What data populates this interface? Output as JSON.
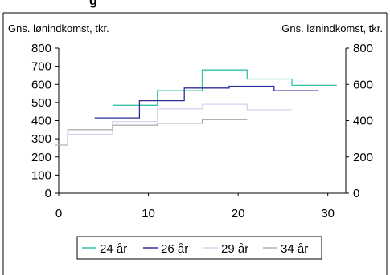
{
  "caption_fragment": "g",
  "chart_data": {
    "type": "line",
    "step": true,
    "ylabel_left": "Gns. lønindkomst, tkr.",
    "ylabel_right": "Gns. lønindkomst, tkr.",
    "xlim": [
      0,
      32
    ],
    "ylim": [
      0,
      800
    ],
    "xticks": [
      "0",
      "10",
      "20",
      "30"
    ],
    "yticks_left": [
      "0",
      "100",
      "200",
      "300",
      "400",
      "500",
      "600",
      "700",
      "800"
    ],
    "yticks_right": [
      "0",
      "200",
      "400",
      "600",
      "800"
    ],
    "grid": false,
    "legend_position": "bottom",
    "series": [
      {
        "name": "24 år",
        "color": "#33c3a8",
        "x": [
          6,
          11,
          16,
          21,
          26,
          31
        ],
        "y": [
          485,
          565,
          680,
          630,
          595,
          595
        ]
      },
      {
        "name": "26 år",
        "color": "#2e2e9a",
        "x": [
          4,
          9,
          14,
          19,
          24,
          29
        ],
        "y": [
          415,
          510,
          580,
          590,
          565,
          565
        ]
      },
      {
        "name": "29 år",
        "color": "#d3d3f3",
        "x": [
          1,
          6,
          11,
          16,
          21,
          26
        ],
        "y": [
          325,
          395,
          465,
          490,
          460,
          460
        ]
      },
      {
        "name": "34 år",
        "color": "#b0b0b0",
        "x": [
          -1,
          1,
          6,
          11,
          16,
          21
        ],
        "y": [
          265,
          350,
          375,
          385,
          405,
          405
        ]
      }
    ]
  }
}
